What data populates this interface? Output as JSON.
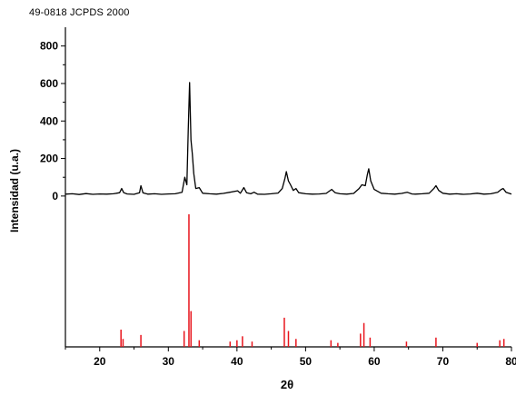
{
  "header_label": "49-0818 JCPDS 2000",
  "chart_data": {
    "type": "line",
    "title": "",
    "xlabel": "2θ",
    "ylabel": "Intensidad (u.a.)",
    "xlim": [
      15,
      80
    ],
    "ylim": [
      -20,
      900
    ],
    "x_ticks": [
      20,
      30,
      40,
      50,
      60,
      70,
      80
    ],
    "y_ticks": [
      0,
      200,
      400,
      600,
      800
    ],
    "grid": false,
    "legend": "none",
    "colors": {
      "pattern": "#000000",
      "reference": "#e8141c"
    },
    "series": [
      {
        "role": "measured-pattern",
        "points": [
          [
            15,
            10
          ],
          [
            16,
            12
          ],
          [
            17,
            8
          ],
          [
            18,
            13
          ],
          [
            19,
            9
          ],
          [
            20,
            11
          ],
          [
            21,
            10
          ],
          [
            22,
            12
          ],
          [
            22.9,
            18
          ],
          [
            23.2,
            40
          ],
          [
            23.5,
            18
          ],
          [
            24,
            11
          ],
          [
            25,
            9
          ],
          [
            25.8,
            18
          ],
          [
            26.0,
            55
          ],
          [
            26.3,
            17
          ],
          [
            27,
            10
          ],
          [
            28,
            12
          ],
          [
            29,
            9
          ],
          [
            30,
            11
          ],
          [
            31,
            12
          ],
          [
            32,
            20
          ],
          [
            32.4,
            100
          ],
          [
            32.7,
            60
          ],
          [
            32.9,
            350
          ],
          [
            33.1,
            605
          ],
          [
            33.3,
            300
          ],
          [
            33.5,
            225
          ],
          [
            33.7,
            120
          ],
          [
            34,
            40
          ],
          [
            34.5,
            45
          ],
          [
            35,
            15
          ],
          [
            36,
            12
          ],
          [
            37,
            10
          ],
          [
            38,
            14
          ],
          [
            39,
            20
          ],
          [
            40.1,
            28
          ],
          [
            40.5,
            15
          ],
          [
            41.0,
            45
          ],
          [
            41.4,
            18
          ],
          [
            42,
            12
          ],
          [
            42.5,
            20
          ],
          [
            43,
            10
          ],
          [
            44,
            9
          ],
          [
            45,
            12
          ],
          [
            46,
            16
          ],
          [
            46.6,
            40
          ],
          [
            47.0,
            95
          ],
          [
            47.2,
            130
          ],
          [
            47.5,
            80
          ],
          [
            47.8,
            60
          ],
          [
            48.2,
            30
          ],
          [
            48.6,
            40
          ],
          [
            49,
            18
          ],
          [
            50,
            12
          ],
          [
            51,
            10
          ],
          [
            52,
            11
          ],
          [
            53,
            14
          ],
          [
            53.8,
            35
          ],
          [
            54.3,
            18
          ],
          [
            55,
            12
          ],
          [
            56,
            10
          ],
          [
            57,
            14
          ],
          [
            57.8,
            40
          ],
          [
            58.2,
            60
          ],
          [
            58.7,
            55
          ],
          [
            59.0,
            115
          ],
          [
            59.2,
            145
          ],
          [
            59.5,
            80
          ],
          [
            60,
            35
          ],
          [
            61,
            15
          ],
          [
            62,
            12
          ],
          [
            63,
            10
          ],
          [
            64,
            14
          ],
          [
            64.8,
            20
          ],
          [
            65.5,
            11
          ],
          [
            66,
            10
          ],
          [
            67,
            12
          ],
          [
            68,
            15
          ],
          [
            68.7,
            40
          ],
          [
            69.0,
            55
          ],
          [
            69.4,
            30
          ],
          [
            70,
            15
          ],
          [
            71,
            10
          ],
          [
            72,
            12
          ],
          [
            73,
            9
          ],
          [
            74,
            11
          ],
          [
            75,
            15
          ],
          [
            76,
            10
          ],
          [
            77,
            12
          ],
          [
            78,
            20
          ],
          [
            78.5,
            35
          ],
          [
            78.8,
            40
          ],
          [
            79.2,
            20
          ],
          [
            80,
            10
          ]
        ]
      },
      {
        "role": "reference-lines",
        "sticks": [
          [
            23.1,
            13
          ],
          [
            23.4,
            6
          ],
          [
            26.0,
            9
          ],
          [
            32.3,
            12
          ],
          [
            33.0,
            100
          ],
          [
            33.3,
            27
          ],
          [
            34.5,
            5
          ],
          [
            39.0,
            4
          ],
          [
            40.0,
            5
          ],
          [
            40.8,
            8
          ],
          [
            42.2,
            4
          ],
          [
            46.9,
            22
          ],
          [
            47.5,
            12
          ],
          [
            48.6,
            6
          ],
          [
            53.7,
            5
          ],
          [
            54.7,
            3
          ],
          [
            58.0,
            10
          ],
          [
            58.5,
            18
          ],
          [
            59.4,
            7
          ],
          [
            64.7,
            4
          ],
          [
            69.0,
            7
          ],
          [
            75.0,
            3
          ],
          [
            78.3,
            5
          ],
          [
            78.9,
            6
          ]
        ]
      }
    ]
  }
}
